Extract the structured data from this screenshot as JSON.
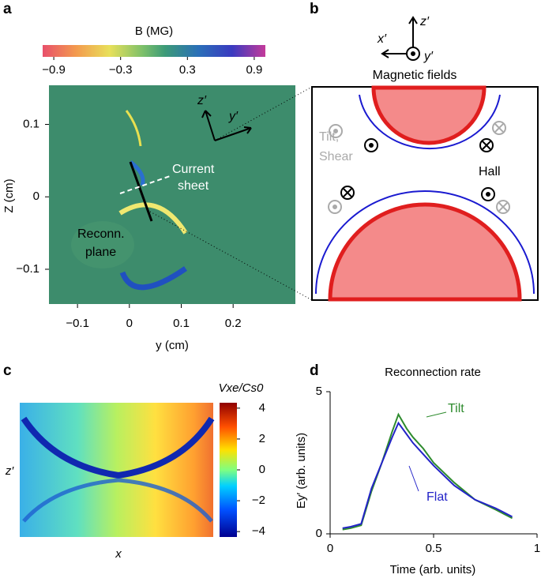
{
  "chart_data": [
    {
      "type": "heatmap",
      "panel": "a",
      "colorbar_label": "B (MG)",
      "clim": [
        -1,
        1
      ],
      "cticks": [
        {
          "value": -0.9,
          "label": "−0.9"
        },
        {
          "value": -0.3,
          "label": "−0.3"
        },
        0.3,
        0.9
      ],
      "xlabel": "y (cm)",
      "ylabel": "Z (cm)",
      "xlim": [
        -0.155,
        0.32
      ],
      "ylim": [
        -0.148,
        0.154
      ],
      "xticks": [
        {
          "value": -0.1,
          "label": "−0.1"
        },
        0,
        0.1,
        0.2
      ],
      "yticks": [
        0.1,
        0,
        {
          "value": -0.1,
          "label": "−0.1"
        }
      ],
      "annotations": [
        "z′",
        "y′",
        "Current",
        "sheet",
        "Reconn.",
        "plane"
      ]
    },
    {
      "type": "diagram",
      "panel": "b",
      "axes": [
        "z′",
        "x′",
        "y′"
      ],
      "title": "Magnetic fields",
      "labels": [
        "Tilt,",
        "Shear",
        "Hall"
      ]
    },
    {
      "type": "heatmap",
      "panel": "c",
      "colorbar_label": "Vxe/Cs0",
      "clim": [
        -4.35,
        4.35
      ],
      "cticks": [
        4,
        2,
        0,
        {
          "value": -2,
          "label": "−2"
        },
        {
          "value": -4,
          "label": "−4"
        }
      ],
      "xlabel": "x",
      "ylabel": "z′"
    },
    {
      "type": "line",
      "panel": "d",
      "title": "Reconnection rate",
      "xlabel": "Time (arb. units)",
      "ylabel": "Ey′ (arb. units)",
      "xlim": [
        0,
        1
      ],
      "ylim": [
        0,
        5
      ],
      "xticks": [
        0,
        0.5,
        1
      ],
      "yticks": [
        0,
        5
      ],
      "x": [
        0.06,
        0.1,
        0.15,
        0.2,
        0.25,
        0.3,
        0.33,
        0.37,
        0.4,
        0.45,
        0.5,
        0.6,
        0.7,
        0.8,
        0.88
      ],
      "series": [
        {
          "name": "Tilt",
          "color": "#2e8b2e",
          "values": [
            0.15,
            0.2,
            0.3,
            1.5,
            2.5,
            3.6,
            4.2,
            3.7,
            3.4,
            3.0,
            2.5,
            1.8,
            1.2,
            0.85,
            0.55
          ]
        },
        {
          "name": "Flat",
          "color": "#2323c8",
          "values": [
            0.2,
            0.25,
            0.35,
            1.6,
            2.5,
            3.4,
            3.9,
            3.5,
            3.2,
            2.8,
            2.4,
            1.7,
            1.2,
            0.9,
            0.6
          ]
        }
      ]
    }
  ]
}
